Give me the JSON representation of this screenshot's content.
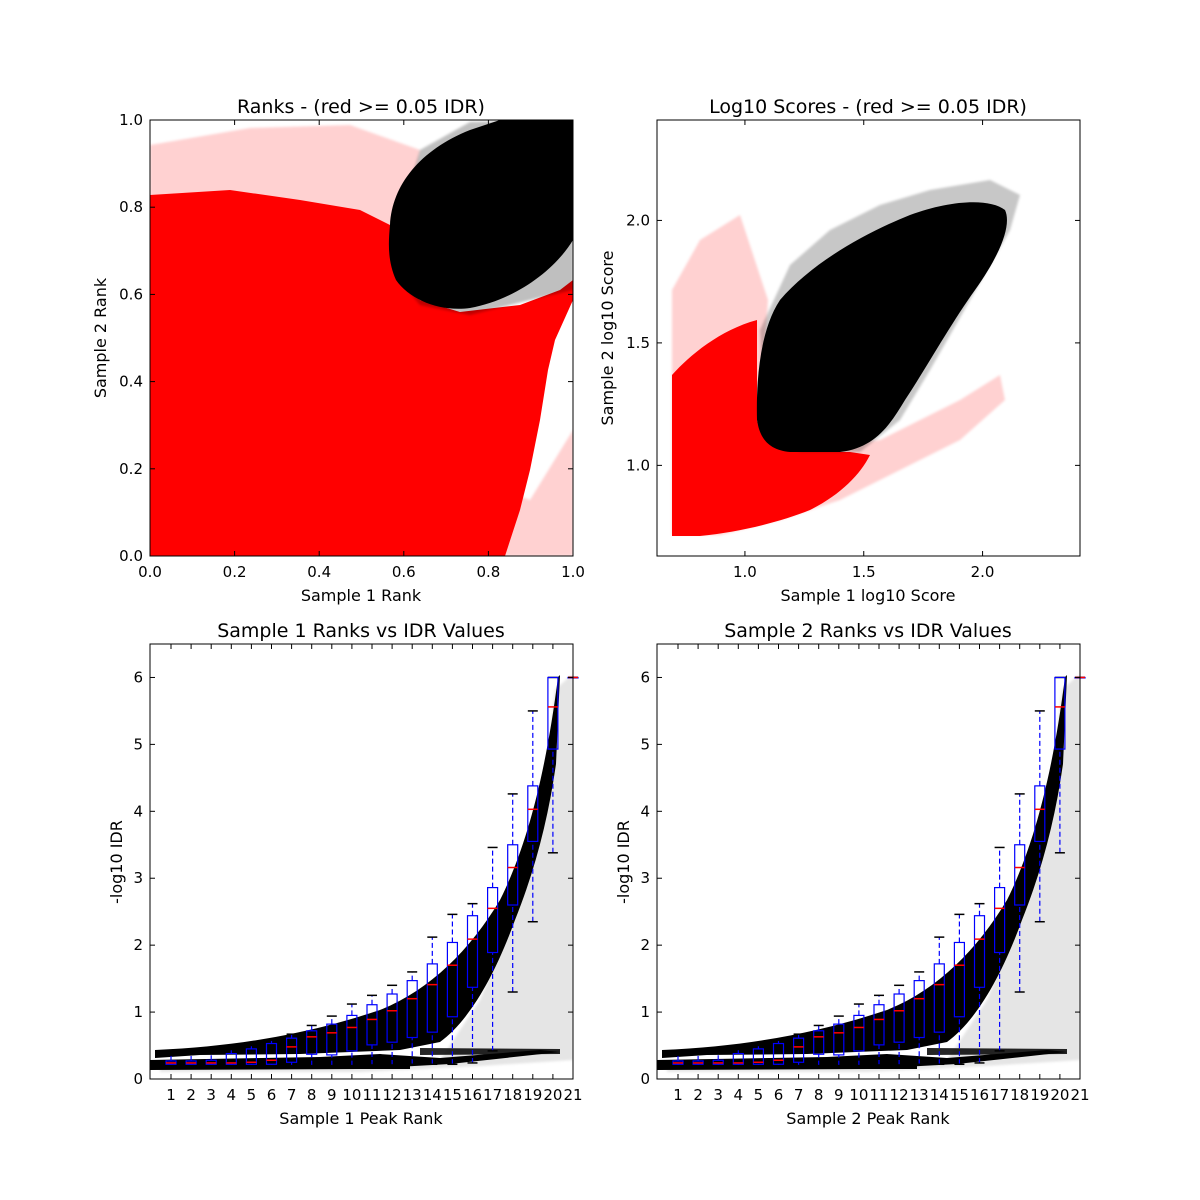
{
  "colors": {
    "accepted": "#000000",
    "rejected": "#ff0000",
    "box": "#0000ff",
    "median": "#ff0000"
  },
  "chart_data": [
    {
      "type": "scatter",
      "title": "Ranks - (red >= 0.05 IDR)",
      "xlabel": "Sample 1 Rank",
      "ylabel": "Sample 2 Rank",
      "xlim": [
        0,
        1.0
      ],
      "ylim": [
        0,
        1.0
      ],
      "xticks": [
        "0.0",
        "0.2",
        "0.4",
        "0.6",
        "0.8",
        "1.0"
      ],
      "yticks": [
        "0.0",
        "0.2",
        "0.4",
        "0.6",
        "0.8",
        "1.0"
      ],
      "series": [
        {
          "color": "#ff0000",
          "region": "rank-rejected"
        },
        {
          "color": "#000000",
          "region": "rank-accepted"
        }
      ]
    },
    {
      "type": "scatter",
      "title": "Log10 Scores - (red >= 0.05 IDR)",
      "xlabel": "Sample 1 log10 Score",
      "ylabel": "Sample 2 log10 Score",
      "xlim": [
        0.63,
        2.41
      ],
      "ylim": [
        0.63,
        2.41
      ],
      "xticks": [
        "1.0",
        "1.5",
        "2.0"
      ],
      "yticks": [
        "1.0",
        "1.5",
        "2.0"
      ],
      "series": [
        {
          "color": "#ff0000",
          "region": "score-rejected"
        },
        {
          "color": "#000000",
          "region": "score-accepted"
        }
      ]
    },
    {
      "type": "box",
      "title": "Sample 1 Ranks vs IDR Values",
      "xlabel": "Sample 1 Peak Rank",
      "ylabel": "-log10 IDR",
      "ylim": [
        0,
        6.5
      ],
      "xticks": [
        "1",
        "2",
        "3",
        "4",
        "5",
        "6",
        "7",
        "8",
        "9",
        "10",
        "11",
        "12",
        "13",
        "14",
        "15",
        "16",
        "17",
        "18",
        "19",
        "20",
        "21"
      ],
      "yticks": [
        "0",
        "1",
        "2",
        "3",
        "4",
        "5",
        "6"
      ],
      "boxes": [
        {
          "q1": 0.22,
          "median": 0.24,
          "q3": 0.27,
          "whislo": 0.2,
          "whishi": 0.38
        },
        {
          "q1": 0.22,
          "median": 0.24,
          "q3": 0.27,
          "whislo": 0.2,
          "whishi": 0.38
        },
        {
          "q1": 0.22,
          "median": 0.24,
          "q3": 0.28,
          "whislo": 0.2,
          "whishi": 0.39
        },
        {
          "q1": 0.22,
          "median": 0.24,
          "q3": 0.38,
          "whislo": 0.2,
          "whishi": 0.44
        },
        {
          "q1": 0.22,
          "median": 0.25,
          "q3": 0.45,
          "whislo": 0.2,
          "whishi": 0.5
        },
        {
          "q1": 0.22,
          "median": 0.28,
          "q3": 0.53,
          "whislo": 0.2,
          "whishi": 0.58
        },
        {
          "q1": 0.25,
          "median": 0.48,
          "q3": 0.61,
          "whislo": 0.2,
          "whishi": 0.67
        },
        {
          "q1": 0.37,
          "median": 0.63,
          "q3": 0.72,
          "whislo": 0.2,
          "whishi": 0.8
        },
        {
          "q1": 0.36,
          "median": 0.69,
          "q3": 0.82,
          "whislo": 0.2,
          "whishi": 0.94
        },
        {
          "q1": 0.42,
          "median": 0.77,
          "q3": 0.95,
          "whislo": 0.2,
          "whishi": 1.12
        },
        {
          "q1": 0.51,
          "median": 0.89,
          "q3": 1.11,
          "whislo": 0.21,
          "whishi": 1.25
        },
        {
          "q1": 0.55,
          "median": 1.02,
          "q3": 1.27,
          "whislo": 0.21,
          "whishi": 1.4
        },
        {
          "q1": 0.62,
          "median": 1.2,
          "q3": 1.47,
          "whislo": 0.22,
          "whishi": 1.6
        },
        {
          "q1": 0.7,
          "median": 1.41,
          "q3": 1.72,
          "whislo": 0.22,
          "whishi": 2.12
        },
        {
          "q1": 0.93,
          "median": 1.7,
          "q3": 2.04,
          "whislo": 0.22,
          "whishi": 2.46
        },
        {
          "q1": 1.37,
          "median": 2.09,
          "q3": 2.44,
          "whislo": 0.24,
          "whishi": 2.62
        },
        {
          "q1": 1.89,
          "median": 2.55,
          "q3": 2.86,
          "whislo": 0.42,
          "whishi": 3.46
        },
        {
          "q1": 2.6,
          "median": 3.16,
          "q3": 3.5,
          "whislo": 1.3,
          "whishi": 4.26
        },
        {
          "q1": 3.55,
          "median": 4.03,
          "q3": 4.38,
          "whislo": 2.35,
          "whishi": 5.5
        },
        {
          "q1": 4.93,
          "median": 5.56,
          "q3": 6.0,
          "whislo": 3.38,
          "whishi": 6.0
        },
        {
          "q1": 6.0,
          "median": 6.0,
          "q3": 6.0,
          "whislo": 6.0,
          "whishi": 6.0
        }
      ]
    },
    {
      "type": "box",
      "title": "Sample 2 Ranks vs IDR Values",
      "xlabel": "Sample 2 Peak Rank",
      "ylabel": "-log10 IDR",
      "ylim": [
        0,
        6.5
      ],
      "xticks": [
        "1",
        "2",
        "3",
        "4",
        "5",
        "6",
        "7",
        "8",
        "9",
        "10",
        "11",
        "12",
        "13",
        "14",
        "15",
        "16",
        "17",
        "18",
        "19",
        "20",
        "21"
      ],
      "yticks": [
        "0",
        "1",
        "2",
        "3",
        "4",
        "5",
        "6"
      ],
      "boxes": [
        {
          "q1": 0.22,
          "median": 0.24,
          "q3": 0.27,
          "whislo": 0.2,
          "whishi": 0.38
        },
        {
          "q1": 0.22,
          "median": 0.24,
          "q3": 0.27,
          "whislo": 0.2,
          "whishi": 0.38
        },
        {
          "q1": 0.22,
          "median": 0.24,
          "q3": 0.28,
          "whislo": 0.2,
          "whishi": 0.39
        },
        {
          "q1": 0.22,
          "median": 0.24,
          "q3": 0.38,
          "whislo": 0.2,
          "whishi": 0.44
        },
        {
          "q1": 0.22,
          "median": 0.25,
          "q3": 0.45,
          "whislo": 0.2,
          "whishi": 0.5
        },
        {
          "q1": 0.22,
          "median": 0.28,
          "q3": 0.53,
          "whislo": 0.2,
          "whishi": 0.58
        },
        {
          "q1": 0.25,
          "median": 0.48,
          "q3": 0.61,
          "whislo": 0.2,
          "whishi": 0.67
        },
        {
          "q1": 0.37,
          "median": 0.63,
          "q3": 0.72,
          "whislo": 0.2,
          "whishi": 0.8
        },
        {
          "q1": 0.36,
          "median": 0.69,
          "q3": 0.82,
          "whislo": 0.2,
          "whishi": 0.94
        },
        {
          "q1": 0.42,
          "median": 0.77,
          "q3": 0.95,
          "whislo": 0.2,
          "whishi": 1.12
        },
        {
          "q1": 0.51,
          "median": 0.89,
          "q3": 1.11,
          "whislo": 0.21,
          "whishi": 1.25
        },
        {
          "q1": 0.55,
          "median": 1.02,
          "q3": 1.27,
          "whislo": 0.21,
          "whishi": 1.4
        },
        {
          "q1": 0.62,
          "median": 1.2,
          "q3": 1.47,
          "whislo": 0.22,
          "whishi": 1.6
        },
        {
          "q1": 0.7,
          "median": 1.41,
          "q3": 1.72,
          "whislo": 0.22,
          "whishi": 2.12
        },
        {
          "q1": 0.93,
          "median": 1.7,
          "q3": 2.04,
          "whislo": 0.22,
          "whishi": 2.46
        },
        {
          "q1": 1.37,
          "median": 2.09,
          "q3": 2.44,
          "whislo": 0.24,
          "whishi": 2.62
        },
        {
          "q1": 1.89,
          "median": 2.55,
          "q3": 2.86,
          "whislo": 0.42,
          "whishi": 3.46
        },
        {
          "q1": 2.6,
          "median": 3.16,
          "q3": 3.5,
          "whislo": 1.3,
          "whishi": 4.26
        },
        {
          "q1": 3.55,
          "median": 4.03,
          "q3": 4.38,
          "whislo": 2.35,
          "whishi": 5.5
        },
        {
          "q1": 4.93,
          "median": 5.56,
          "q3": 6.0,
          "whislo": 3.38,
          "whishi": 6.0
        },
        {
          "q1": 6.0,
          "median": 6.0,
          "q3": 6.0,
          "whislo": 6.0,
          "whishi": 6.0
        }
      ]
    }
  ]
}
